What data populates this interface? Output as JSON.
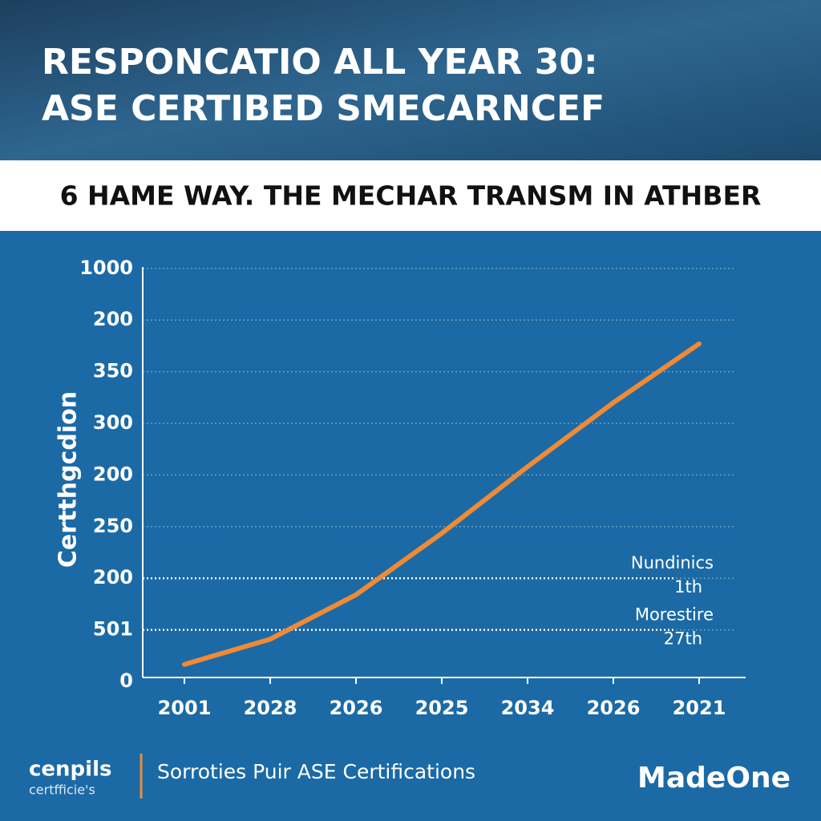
{
  "header": {
    "title_lines": [
      "RESPONCATIO ALL YEAR 30:",
      "ASE CERTIBED SMECARNCEF"
    ],
    "subtitle": "6 HAME WAY. THE MECHAR TRANSM IN ATHBER"
  },
  "chart_data": {
    "type": "line",
    "y_label": "Certthgcdion",
    "categories": [
      "2001",
      "2028",
      "2026",
      "2025",
      "2034",
      "2026",
      "2021"
    ],
    "series": [
      {
        "name": null,
        "color": "#f08a35",
        "values": [
          0.33,
          0.82,
          1.68,
          2.87,
          4.16,
          5.4,
          6.54
        ]
      }
    ],
    "ylim": [
      0,
      8.3
    ],
    "yticks": [
      {
        "value": 0,
        "label": "0"
      },
      {
        "value": 1,
        "label": "501"
      },
      {
        "value": 2,
        "label": "200"
      },
      {
        "value": 3,
        "label": "250"
      },
      {
        "value": 4,
        "label": "200"
      },
      {
        "value": 5,
        "label": "300"
      },
      {
        "value": 6,
        "label": "350"
      },
      {
        "value": 7,
        "label": "200"
      },
      {
        "value": 8,
        "label": "1000"
      }
    ],
    "grid": true,
    "reference_lines": [
      {
        "value": 2,
        "label": [
          "Nundinics",
          "1th"
        ]
      },
      {
        "value": 1,
        "label": [
          "Morestire",
          "27th"
        ]
      }
    ]
  },
  "footer": {
    "logo_lines": [
      "cenpils",
      "certfficie's"
    ],
    "caption": "Sorroties Puir ASE Certifications",
    "brand": "MadeOne"
  }
}
